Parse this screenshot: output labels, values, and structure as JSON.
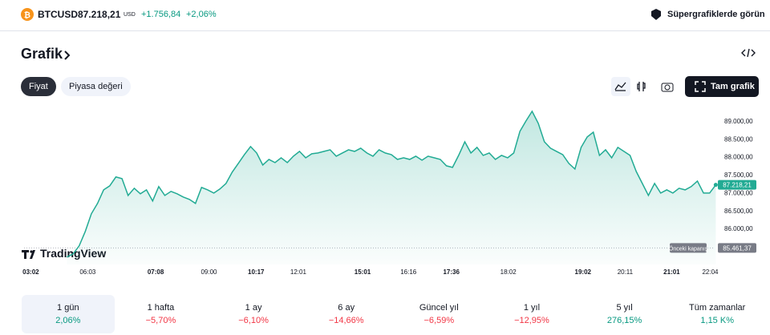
{
  "header": {
    "symbol": "BTCUSD",
    "price": "87.218,21",
    "currency": "USD",
    "change": "+1.756,84",
    "change_percent": "+2,06%",
    "supercharts": "Süpergrafiklerde görün"
  },
  "section_title": "Grafik",
  "tabs": [
    "Fiyat",
    "Piyasa değeri"
  ],
  "full_chart": "Tam grafik",
  "logo": "TradingView",
  "chart_data": {
    "type": "line",
    "color": "#22ab94",
    "values": [
      85206,
      85295,
      85518,
      85920,
      86411,
      86701,
      87080,
      87192,
      87438,
      87393,
      86924,
      87125,
      86969,
      87080,
      86768,
      87170,
      86924,
      87036,
      86969,
      86880,
      86813,
      86701,
      87147,
      87080,
      86991,
      87103,
      87259,
      87572,
      87817,
      88063,
      88286,
      88107,
      87772,
      87929,
      87839,
      87973,
      87839,
      88018,
      88152,
      87973,
      88085,
      88107,
      88152,
      88196,
      88018,
      88107,
      88196,
      88152,
      88241,
      88107,
      88018,
      88196,
      88107,
      88063,
      87929,
      87973,
      87929,
      88018,
      87906,
      88018,
      87973,
      87929,
      87750,
      87705,
      88040,
      88420,
      88107,
      88263,
      88040,
      88107,
      87929,
      88040,
      87973,
      88107,
      88710,
      89000,
      89268,
      88933,
      88420,
      88241,
      88152,
      88063,
      87817,
      87661,
      88263,
      88554,
      88688,
      88040,
      88196,
      87973,
      88263,
      88152,
      88040,
      87594,
      87259,
      86924,
      87259,
      86991,
      87080,
      86991,
      87125,
      87080,
      87170,
      87326,
      86991,
      86991,
      87218.21
    ],
    "value_labels": {
      "106": "87.218,21"
    },
    "xlim": [
      -7,
      107
    ],
    "xticks": [
      {
        "value": -5.9,
        "label": "03:02"
      },
      {
        "value": 3.4,
        "label": "06:03"
      },
      {
        "value": 14.5,
        "label": "07:08"
      },
      {
        "value": 23.2,
        "label": "09:00"
      },
      {
        "value": 30.9,
        "label": "10:17"
      },
      {
        "value": 37.8,
        "label": "12:01"
      },
      {
        "value": 48.3,
        "label": "15:01"
      },
      {
        "value": 55.8,
        "label": "16:16"
      },
      {
        "value": 62.8,
        "label": "17:36"
      },
      {
        "value": 72.1,
        "label": "18:02"
      },
      {
        "value": 84.3,
        "label": "19:02"
      },
      {
        "value": 91.2,
        "label": "20:11"
      },
      {
        "value": 98.8,
        "label": "21:01"
      },
      {
        "value": 105.1,
        "label": "22:04"
      }
    ],
    "ylim": [
      85000,
      89400
    ],
    "yticks": [
      {
        "value": 89000,
        "label": "89.000,00"
      },
      {
        "value": 88500,
        "label": "88.500,00"
      },
      {
        "value": 88000,
        "label": "88.000,00"
      },
      {
        "value": 87500,
        "label": "87.500,00"
      },
      {
        "value": 87000,
        "label": "87.000,00"
      },
      {
        "value": 86500,
        "label": "86.500,00"
      },
      {
        "value": 86000,
        "label": "86.000,00"
      }
    ],
    "grid": false,
    "previous_close": {
      "name": "Önceki kapanış",
      "value": 85461.37,
      "value_label": "85.461,37"
    }
  },
  "periods": [
    {
      "label": "1 gün",
      "change": "2,06%"
    },
    {
      "label": "1 hafta",
      "change": "−5,70%"
    },
    {
      "label": "1 ay",
      "change": "−6,10%"
    },
    {
      "label": "6 ay",
      "change": "−14,66%"
    },
    {
      "label": "Güncel yıl",
      "change": "−6,59%"
    },
    {
      "label": "1 yıl",
      "change": "−12,95%"
    },
    {
      "label": "5 yıl",
      "change": "276,15%"
    },
    {
      "label": "Tüm zamanlar",
      "change": "1,15 K%"
    }
  ]
}
